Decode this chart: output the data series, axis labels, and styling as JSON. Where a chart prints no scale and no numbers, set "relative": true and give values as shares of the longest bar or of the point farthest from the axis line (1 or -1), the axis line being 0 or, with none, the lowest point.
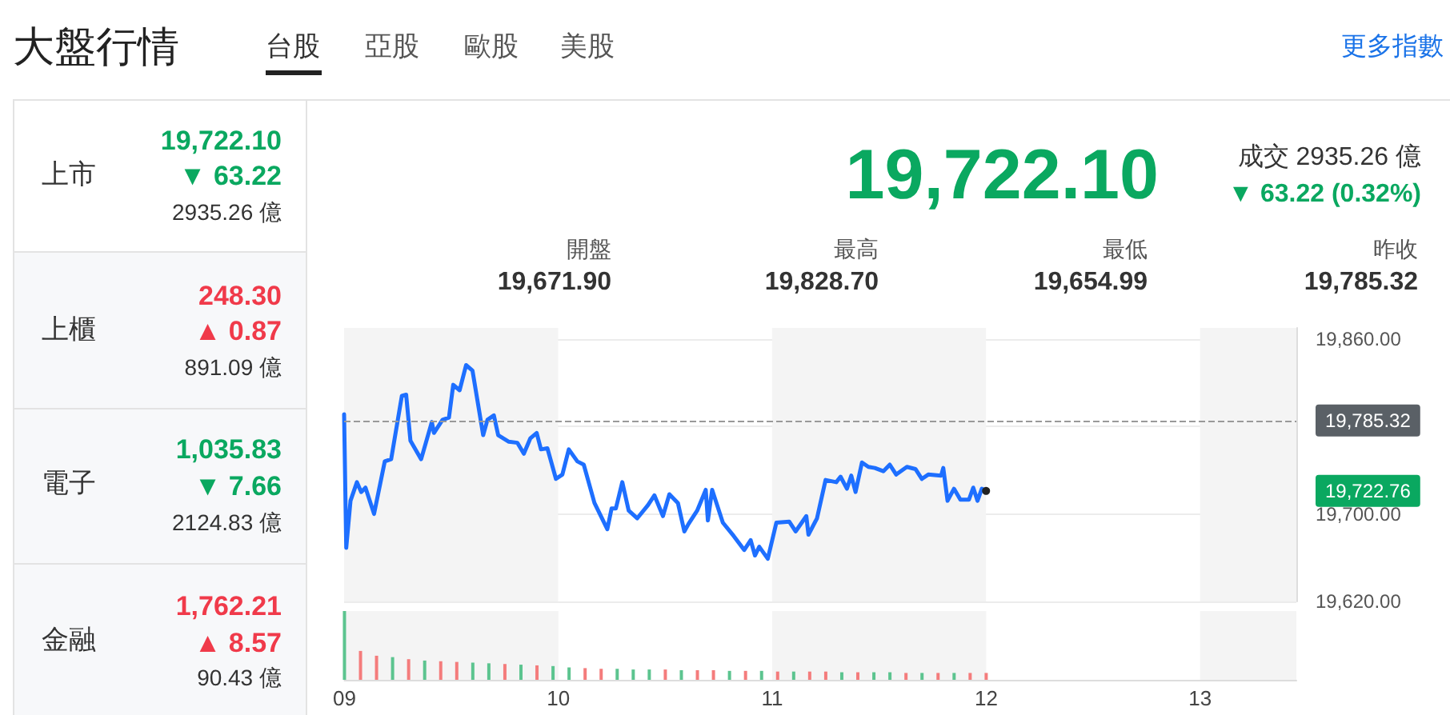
{
  "chart_data": [
    {
      "type": "other",
      "title": "大盤行情",
      "annotations": [
        "台股",
        "亞股",
        "歐股",
        "美股",
        "更多指數",
        "上市",
        "19,722.10",
        "▼ 63.22",
        "2935.26 億",
        "上櫃",
        "248.30",
        "▲ 0.87",
        "891.09 億",
        "電子",
        "1,035.83",
        "▼ 7.66",
        "2124.83 億",
        "金融",
        "1,762.21",
        "▲ 8.57",
        "90.43 億",
        "19,722.10",
        "成交 2935.26 億",
        "▼ 63.22 (0.32%)",
        "開盤",
        "19,671.90",
        "最高",
        "19,828.70",
        "最低",
        "19,654.99",
        "昨收",
        "19,785.32"
      ]
    },
    {
      "type": "line",
      "x": [
        9.0,
        9.01,
        9.03,
        9.06,
        9.08,
        9.1,
        9.14,
        9.19,
        9.22,
        9.27,
        9.29,
        9.31,
        9.36,
        9.41,
        9.42,
        9.46,
        9.49,
        9.51,
        9.54,
        9.57,
        9.6,
        9.65,
        9.67,
        9.7,
        9.72,
        9.77,
        9.81,
        9.84,
        9.87,
        9.9,
        9.92,
        9.95,
        9.99,
        10.02,
        10.05,
        10.09,
        10.12,
        10.17,
        10.23,
        10.25,
        10.27,
        10.3,
        10.33,
        10.37,
        10.42,
        10.45,
        10.49,
        10.52,
        10.56,
        10.59,
        10.61,
        10.65,
        10.69,
        10.7,
        10.72,
        10.77,
        10.82,
        10.87,
        10.9,
        10.92,
        10.94,
        10.98,
        11.02,
        11.08,
        11.11,
        11.16,
        11.17,
        11.21,
        11.25,
        11.3,
        11.32,
        11.35,
        11.37,
        11.39,
        11.42,
        11.45,
        11.48,
        11.52,
        11.55,
        11.58,
        11.63,
        11.67,
        11.7,
        11.73,
        11.79,
        11.8,
        11.82,
        11.85,
        11.88,
        11.92,
        11.94,
        11.96,
        11.98,
        12.0
      ],
      "series": [
        {
          "color": "#1e6fff",
          "values": [
            19791,
            19669,
            19712,
            19729,
            19720,
            19724,
            19700,
            19748,
            19750,
            19808,
            19809,
            19767,
            19750,
            19784,
            19774,
            19786,
            19788,
            19818,
            19813,
            19836,
            19831,
            19772,
            19786,
            19790,
            19772,
            19766,
            19765,
            19755,
            19769,
            19774,
            19759,
            19760,
            19732,
            19736,
            19759,
            19748,
            19745,
            19710,
            19686,
            19705,
            19705,
            19729,
            19703,
            19696,
            19708,
            19717,
            19698,
            19718,
            19710,
            19684,
            19691,
            19703,
            19722,
            19694,
            19722,
            19692,
            19680,
            19667,
            19676,
            19662,
            19670,
            19659,
            19692,
            19693,
            19684,
            19698,
            19681,
            19696,
            19731,
            19729,
            19734,
            19723,
            19735,
            19720,
            19747,
            19743,
            19742,
            19739,
            19745,
            19736,
            19743,
            19741,
            19732,
            19736,
            19735,
            19742,
            19712,
            19723,
            19713,
            19713,
            19724,
            19712,
            19723,
            19721
          ]
        }
      ],
      "xlim": [
        9,
        13.45
      ],
      "ylim": [
        19620,
        19870
      ],
      "yticks": [
        {
          "value": 19620,
          "label": "19,620.00"
        },
        {
          "value": 19700,
          "label": "19,700.00"
        },
        {
          "value": 19780,
          "label": null
        },
        {
          "value": 19860,
          "label": "19,860.00"
        }
      ],
      "grid": "y",
      "tick_labels": "y",
      "marker": "none",
      "line_style": "solid",
      "ref_lines": [
        {
          "axis": "y",
          "value": 19785.32,
          "label": "19,785.32",
          "color": "#999999",
          "line_style": "dashed"
        }
      ],
      "bands": [
        {
          "axis": "x",
          "from": 9,
          "to": 10,
          "color": "#f4f4f4"
        },
        {
          "axis": "x",
          "from": 11,
          "to": 12,
          "color": "#f4f4f4"
        },
        {
          "axis": "x",
          "from": 13,
          "to": 13.45,
          "color": "#f4f4f4"
        }
      ],
      "annotations": [
        "19,722.76"
      ]
    },
    {
      "type": "bar",
      "relative": true,
      "x": [
        9.0,
        9.075,
        9.15,
        9.225,
        9.3,
        9.375,
        9.45,
        9.525,
        9.6,
        9.675,
        9.75,
        9.825,
        9.9,
        9.975,
        10.05,
        10.125,
        10.2,
        10.275,
        10.35,
        10.425,
        10.5,
        10.575,
        10.65,
        10.725,
        10.8,
        10.875,
        10.95,
        11.025,
        11.1,
        11.175,
        11.25,
        11.325,
        11.4,
        11.475,
        11.55,
        11.625,
        11.7,
        11.775,
        11.85,
        11.925,
        12.0
      ],
      "values": [
        1,
        0.42,
        0.35,
        0.33,
        0.3,
        0.28,
        0.27,
        0.26,
        0.25,
        0.24,
        0.23,
        0.22,
        0.21,
        0.2,
        0.18,
        0.17,
        0.16,
        0.16,
        0.15,
        0.15,
        0.15,
        0.14,
        0.14,
        0.14,
        0.13,
        0.13,
        0.13,
        0.12,
        0.12,
        0.12,
        0.12,
        0.11,
        0.11,
        0.11,
        0.11,
        0.1,
        0.1,
        0.1,
        0.1,
        0.1,
        0.1
      ],
      "colors": [
        "#5cc48f",
        "#f47c7c",
        "#f47c7c",
        "#5cc48f",
        "#f47c7c",
        "#5cc48f",
        "#f47c7c",
        "#f47c7c",
        "#5cc48f",
        "#5cc48f",
        "#f47c7c",
        "#5cc48f",
        "#f47c7c",
        "#5cc48f",
        "#5cc48f",
        "#f47c7c",
        "#f47c7c",
        "#5cc48f",
        "#5cc48f",
        "#5cc48f",
        "#f47c7c",
        "#5cc48f",
        "#f47c7c",
        "#f47c7c",
        "#5cc48f",
        "#f47c7c",
        "#5cc48f",
        "#f47c7c",
        "#5cc48f",
        "#f47c7c",
        "#f47c7c",
        "#5cc48f",
        "#f47c7c",
        "#5cc48f",
        "#5cc48f",
        "#f47c7c",
        "#5cc48f",
        "#f47c7c",
        "#5cc48f",
        "#f47c7c",
        "#f47c7c"
      ],
      "xlim": [
        9,
        13.45
      ],
      "xticks": [
        {
          "value": 9,
          "label": "09"
        },
        10,
        11,
        12,
        13
      ],
      "tick_labels": "x",
      "bands": [
        {
          "axis": "x",
          "from": 9,
          "to": 10,
          "color": "#f4f4f4"
        },
        {
          "axis": "x",
          "from": 11,
          "to": 12,
          "color": "#f4f4f4"
        },
        {
          "axis": "x",
          "from": 13,
          "to": 13.45,
          "color": "#f4f4f4"
        }
      ]
    }
  ]
}
